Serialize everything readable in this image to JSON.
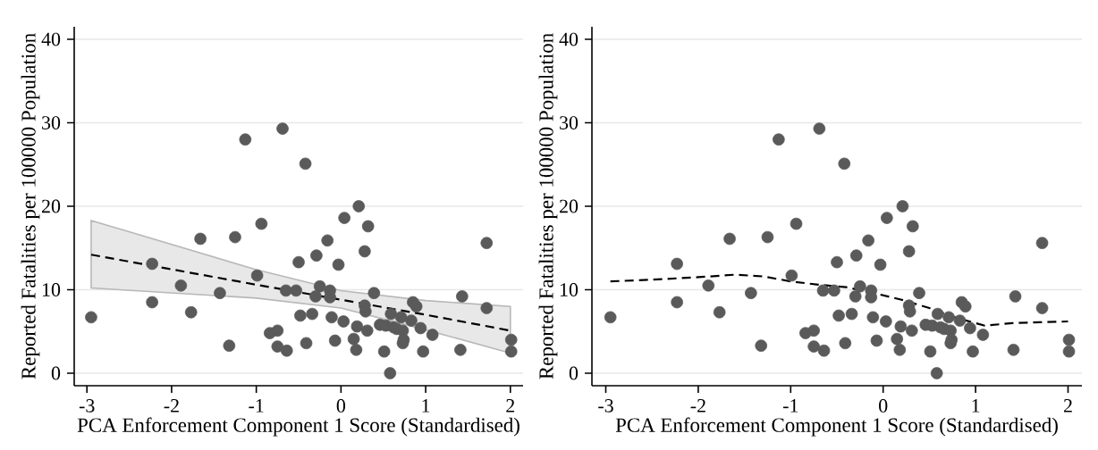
{
  "chart_data": [
    {
      "type": "scatter",
      "xlabel": "PCA Enforcement Component 1 Score (Standardised)",
      "ylabel": "Reported Fatalities per 100000 Population",
      "xlim": [
        -3.15,
        2.15
      ],
      "ylim": [
        -1.5,
        41.5
      ],
      "xticks": [
        -3,
        -2,
        -1,
        0,
        1,
        2
      ],
      "yticks": [
        0,
        10,
        20,
        30,
        40
      ],
      "grid": "y",
      "series": [
        {
          "type": "line",
          "color": "#000000",
          "line_style": "dashed",
          "marker": "none",
          "x": [
            -2.95,
            -1,
            0,
            1,
            2
          ],
          "values": [
            14.2,
            10.6,
            8.8,
            7.0,
            5.1
          ],
          "lower": [
            10.2,
            9.0,
            7.8,
            5.2,
            2.4
          ],
          "upper": [
            18.3,
            12.4,
            9.9,
            8.7,
            8.0
          ]
        },
        {
          "color": "#5a5a5a",
          "marker": "circle",
          "x": [
            -2.95,
            -2.23,
            -2.23,
            -1.89,
            -1.77,
            -1.66,
            -1.43,
            -1.32,
            -1.25,
            -1.13,
            -0.99,
            -0.94,
            -0.84,
            -0.75,
            -0.75,
            -0.69,
            -0.65,
            -0.64,
            -0.53,
            -0.5,
            -0.48,
            -0.42,
            -0.41,
            -0.34,
            -0.3,
            -0.29,
            -0.25,
            -0.16,
            -0.13,
            -0.13,
            -0.11,
            -0.07,
            -0.03,
            0.03,
            0.04,
            0.15,
            0.18,
            0.19,
            0.21,
            0.28,
            0.28,
            0.29,
            0.31,
            0.32,
            0.39,
            0.46,
            0.51,
            0.53,
            0.58,
            0.59,
            0.62,
            0.66,
            0.71,
            0.73,
            0.73,
            0.74,
            0.83,
            0.85,
            0.89,
            0.94,
            0.97,
            1.08,
            1.41,
            1.43,
            1.72,
            1.72,
            2.01,
            2.01
          ],
          "values": [
            6.7,
            13.1,
            8.5,
            10.5,
            7.3,
            16.1,
            9.6,
            3.3,
            16.3,
            28.0,
            11.7,
            17.9,
            4.8,
            5.1,
            3.2,
            29.3,
            9.9,
            2.7,
            9.9,
            13.3,
            6.9,
            25.1,
            3.6,
            7.1,
            9.2,
            14.1,
            10.4,
            15.9,
            9.9,
            9.1,
            6.7,
            3.9,
            13.0,
            6.2,
            18.6,
            4.1,
            2.8,
            5.6,
            20.0,
            14.6,
            8.1,
            7.4,
            5.1,
            17.6,
            9.6,
            5.8,
            2.6,
            5.7,
            0.0,
            7.1,
            5.5,
            5.3,
            6.7,
            5.1,
            3.6,
            4.0,
            6.3,
            8.5,
            8.0,
            5.4,
            2.6,
            4.6,
            2.8,
            9.2,
            7.8,
            15.6,
            4.0,
            2.6
          ]
        }
      ]
    },
    {
      "type": "scatter",
      "xlabel": "PCA Enforcement Component 1 Score (Standardised)",
      "ylabel": "Reported Fatalities per 100000 Population",
      "xlim": [
        -3.15,
        2.15
      ],
      "ylim": [
        -1.5,
        41.5
      ],
      "xticks": [
        -3,
        -2,
        -1,
        0,
        1,
        2
      ],
      "yticks": [
        0,
        10,
        20,
        30,
        40
      ],
      "grid": "y",
      "series": [
        {
          "color": "#5a5a5a",
          "marker": "circle",
          "x": [
            -2.95,
            -2.23,
            -2.23,
            -1.89,
            -1.77,
            -1.66,
            -1.43,
            -1.32,
            -1.25,
            -1.13,
            -0.99,
            -0.94,
            -0.84,
            -0.75,
            -0.75,
            -0.69,
            -0.65,
            -0.64,
            -0.53,
            -0.5,
            -0.48,
            -0.42,
            -0.41,
            -0.34,
            -0.3,
            -0.29,
            -0.25,
            -0.16,
            -0.13,
            -0.13,
            -0.11,
            -0.07,
            -0.03,
            0.03,
            0.04,
            0.15,
            0.18,
            0.19,
            0.21,
            0.28,
            0.28,
            0.29,
            0.31,
            0.32,
            0.39,
            0.46,
            0.51,
            0.53,
            0.58,
            0.59,
            0.62,
            0.66,
            0.71,
            0.73,
            0.73,
            0.74,
            0.83,
            0.85,
            0.89,
            0.94,
            0.97,
            1.08,
            1.41,
            1.43,
            1.72,
            1.72,
            2.01,
            2.01
          ],
          "values": [
            6.7,
            13.1,
            8.5,
            10.5,
            7.3,
            16.1,
            9.6,
            3.3,
            16.3,
            28.0,
            11.7,
            17.9,
            4.8,
            5.1,
            3.2,
            29.3,
            9.9,
            2.7,
            9.9,
            13.3,
            6.9,
            25.1,
            3.6,
            7.1,
            9.2,
            14.1,
            10.4,
            15.9,
            9.9,
            9.1,
            6.7,
            3.9,
            13.0,
            6.2,
            18.6,
            4.1,
            2.8,
            5.6,
            20.0,
            14.6,
            8.1,
            7.4,
            5.1,
            17.6,
            9.6,
            5.8,
            2.6,
            5.7,
            0.0,
            7.1,
            5.5,
            5.3,
            6.7,
            5.1,
            3.6,
            4.0,
            6.3,
            8.5,
            8.0,
            5.4,
            2.6,
            4.6,
            2.8,
            9.2,
            7.8,
            15.6,
            4.0,
            2.6
          ]
        },
        {
          "type": "line",
          "color": "#000000",
          "line_style": "dashed",
          "marker": "none",
          "x": [
            -2.95,
            -2.5,
            -2.0,
            -1.6,
            -1.3,
            -1.0,
            -0.7,
            -0.4,
            -0.1,
            0.2,
            0.5,
            0.8,
            1.1,
            1.4,
            1.7,
            2.0
          ],
          "values": [
            11.0,
            11.2,
            11.5,
            11.8,
            11.6,
            11.0,
            10.6,
            10.3,
            9.6,
            8.8,
            7.8,
            6.6,
            5.7,
            6.0,
            6.1,
            6.2
          ]
        }
      ]
    }
  ]
}
